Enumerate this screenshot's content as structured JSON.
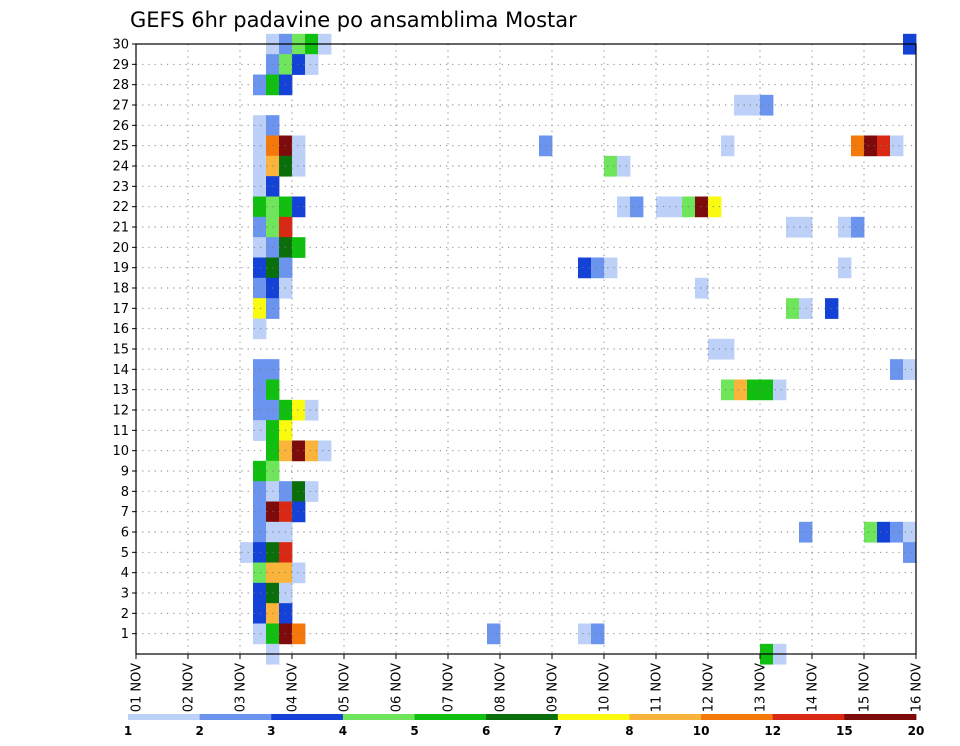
{
  "chart_data": {
    "type": "heatmap",
    "title": "GEFS 6hr padavine po ansamblima Mostar",
    "x_tick_labels": [
      "01 NOV",
      "02 NOV",
      "03 NOV",
      "04 NOV",
      "05 NOV",
      "06 NOV",
      "07 NOV",
      "08 NOV",
      "09 NOV",
      "10 NOV",
      "11 NOV",
      "12 NOV",
      "13 NOV",
      "14 NOV",
      "15 NOV",
      "16 NOV"
    ],
    "y_tick_labels": [
      "1",
      "2",
      "3",
      "4",
      "5",
      "6",
      "7",
      "8",
      "9",
      "10",
      "11",
      "12",
      "13",
      "14",
      "15",
      "16",
      "17",
      "18",
      "19",
      "20",
      "21",
      "22",
      "23",
      "24",
      "25",
      "26",
      "27",
      "28",
      "29",
      "30"
    ],
    "xlim_days": [
      1,
      16
    ],
    "ylim_members": [
      0,
      30
    ],
    "time_step_hours": 6,
    "grid": true,
    "colorbar": {
      "tick_labels": [
        "1",
        "2",
        "3",
        "4",
        "5",
        "6",
        "7",
        "8",
        "10",
        "12",
        "15",
        "20"
      ],
      "colors": [
        "#bcd0f8",
        "#6a94ee",
        "#1441d6",
        "#6ee55a",
        "#10bf10",
        "#0a6e0a",
        "#fafa10",
        "#fab43c",
        "#f5780a",
        "#d92814",
        "#7d0b0b"
      ]
    },
    "cells": [
      {
        "m": 30,
        "t": "2025-11-03T12",
        "c": 0
      },
      {
        "m": 30,
        "t": "2025-11-03T18",
        "c": 1
      },
      {
        "m": 30,
        "t": "2025-11-04T00",
        "c": 3
      },
      {
        "m": 30,
        "t": "2025-11-04T06",
        "c": 4
      },
      {
        "m": 30,
        "t": "2025-11-04T12",
        "c": 0
      },
      {
        "m": 30,
        "t": "2025-11-15T18",
        "c": 2
      },
      {
        "m": 29,
        "t": "2025-11-03T12",
        "c": 1
      },
      {
        "m": 29,
        "t": "2025-11-03T18",
        "c": 3
      },
      {
        "m": 29,
        "t": "2025-11-04T00",
        "c": 2
      },
      {
        "m": 29,
        "t": "2025-11-04T06",
        "c": 0
      },
      {
        "m": 28,
        "t": "2025-11-03T06",
        "c": 1
      },
      {
        "m": 28,
        "t": "2025-11-03T12",
        "c": 4
      },
      {
        "m": 28,
        "t": "2025-11-03T18",
        "c": 2
      },
      {
        "m": 27,
        "t": "2025-11-12T12",
        "c": 0
      },
      {
        "m": 27,
        "t": "2025-11-12T18",
        "c": 0
      },
      {
        "m": 27,
        "t": "2025-11-13T00",
        "c": 1
      },
      {
        "m": 26,
        "t": "2025-11-03T06",
        "c": 0
      },
      {
        "m": 26,
        "t": "2025-11-03T12",
        "c": 1
      },
      {
        "m": 25,
        "t": "2025-11-03T06",
        "c": 0
      },
      {
        "m": 25,
        "t": "2025-11-03T12",
        "c": 8
      },
      {
        "m": 25,
        "t": "2025-11-03T18",
        "c": 10
      },
      {
        "m": 25,
        "t": "2025-11-04T00",
        "c": 0
      },
      {
        "m": 25,
        "t": "2025-11-08T18",
        "c": 1
      },
      {
        "m": 25,
        "t": "2025-11-12T06",
        "c": 0
      },
      {
        "m": 25,
        "t": "2025-11-14T18",
        "c": 8
      },
      {
        "m": 25,
        "t": "2025-11-15T00",
        "c": 10
      },
      {
        "m": 25,
        "t": "2025-11-15T06",
        "c": 9
      },
      {
        "m": 25,
        "t": "2025-11-15T12",
        "c": 0
      },
      {
        "m": 24,
        "t": "2025-11-03T06",
        "c": 0
      },
      {
        "m": 24,
        "t": "2025-11-03T12",
        "c": 7
      },
      {
        "m": 24,
        "t": "2025-11-03T18",
        "c": 5
      },
      {
        "m": 24,
        "t": "2025-11-04T00",
        "c": 0
      },
      {
        "m": 24,
        "t": "2025-11-10T00",
        "c": 3
      },
      {
        "m": 24,
        "t": "2025-11-10T06",
        "c": 0
      },
      {
        "m": 23,
        "t": "2025-11-03T06",
        "c": 0
      },
      {
        "m": 23,
        "t": "2025-11-03T12",
        "c": 2
      },
      {
        "m": 22,
        "t": "2025-11-03T06",
        "c": 4
      },
      {
        "m": 22,
        "t": "2025-11-03T12",
        "c": 3
      },
      {
        "m": 22,
        "t": "2025-11-03T18",
        "c": 4
      },
      {
        "m": 22,
        "t": "2025-11-04T00",
        "c": 2
      },
      {
        "m": 22,
        "t": "2025-11-10T06",
        "c": 0
      },
      {
        "m": 22,
        "t": "2025-11-10T12",
        "c": 1
      },
      {
        "m": 22,
        "t": "2025-11-11T00",
        "c": 0
      },
      {
        "m": 22,
        "t": "2025-11-11T06",
        "c": 0
      },
      {
        "m": 22,
        "t": "2025-11-11T12",
        "c": 3
      },
      {
        "m": 22,
        "t": "2025-11-11T18",
        "c": 10
      },
      {
        "m": 22,
        "t": "2025-11-12T00",
        "c": 6
      },
      {
        "m": 21,
        "t": "2025-11-03T06",
        "c": 1
      },
      {
        "m": 21,
        "t": "2025-11-03T12",
        "c": 3
      },
      {
        "m": 21,
        "t": "2025-11-03T18",
        "c": 9
      },
      {
        "m": 21,
        "t": "2025-11-13T12",
        "c": 0
      },
      {
        "m": 21,
        "t": "2025-11-13T18",
        "c": 0
      },
      {
        "m": 21,
        "t": "2025-11-14T12",
        "c": 0
      },
      {
        "m": 21,
        "t": "2025-11-14T18",
        "c": 1
      },
      {
        "m": 20,
        "t": "2025-11-03T06",
        "c": 0
      },
      {
        "m": 20,
        "t": "2025-11-03T12",
        "c": 1
      },
      {
        "m": 20,
        "t": "2025-11-03T18",
        "c": 5
      },
      {
        "m": 20,
        "t": "2025-11-04T00",
        "c": 4
      },
      {
        "m": 19,
        "t": "2025-11-03T06",
        "c": 2
      },
      {
        "m": 19,
        "t": "2025-11-03T12",
        "c": 5
      },
      {
        "m": 19,
        "t": "2025-11-03T18",
        "c": 1
      },
      {
        "m": 19,
        "t": "2025-11-09T12",
        "c": 2
      },
      {
        "m": 19,
        "t": "2025-11-09T18",
        "c": 1
      },
      {
        "m": 19,
        "t": "2025-11-10T00",
        "c": 0
      },
      {
        "m": 19,
        "t": "2025-11-14T12",
        "c": 0
      },
      {
        "m": 18,
        "t": "2025-11-03T06",
        "c": 1
      },
      {
        "m": 18,
        "t": "2025-11-03T12",
        "c": 2
      },
      {
        "m": 18,
        "t": "2025-11-03T18",
        "c": 0
      },
      {
        "m": 18,
        "t": "2025-11-11T18",
        "c": 0
      },
      {
        "m": 17,
        "t": "2025-11-03T06",
        "c": 6
      },
      {
        "m": 17,
        "t": "2025-11-03T12",
        "c": 1
      },
      {
        "m": 17,
        "t": "2025-11-13T12",
        "c": 3
      },
      {
        "m": 17,
        "t": "2025-11-13T18",
        "c": 0
      },
      {
        "m": 17,
        "t": "2025-11-14T06",
        "c": 2
      },
      {
        "m": 16,
        "t": "2025-11-03T06",
        "c": 0
      },
      {
        "m": 15,
        "t": "2025-11-12T00",
        "c": 0
      },
      {
        "m": 15,
        "t": "2025-11-12T06",
        "c": 0
      },
      {
        "m": 14,
        "t": "2025-11-03T06",
        "c": 1
      },
      {
        "m": 14,
        "t": "2025-11-03T12",
        "c": 1
      },
      {
        "m": 14,
        "t": "2025-11-15T12",
        "c": 1
      },
      {
        "m": 14,
        "t": "2025-11-15T18",
        "c": 0
      },
      {
        "m": 13,
        "t": "2025-11-03T06",
        "c": 1
      },
      {
        "m": 13,
        "t": "2025-11-03T12",
        "c": 4
      },
      {
        "m": 13,
        "t": "2025-11-12T06",
        "c": 3
      },
      {
        "m": 13,
        "t": "2025-11-12T12",
        "c": 7
      },
      {
        "m": 13,
        "t": "2025-11-12T18",
        "c": 4
      },
      {
        "m": 13,
        "t": "2025-11-13T00",
        "c": 4
      },
      {
        "m": 13,
        "t": "2025-11-13T06",
        "c": 0
      },
      {
        "m": 12,
        "t": "2025-11-03T06",
        "c": 1
      },
      {
        "m": 12,
        "t": "2025-11-03T12",
        "c": 1
      },
      {
        "m": 12,
        "t": "2025-11-03T18",
        "c": 4
      },
      {
        "m": 12,
        "t": "2025-11-04T00",
        "c": 6
      },
      {
        "m": 12,
        "t": "2025-11-04T06",
        "c": 0
      },
      {
        "m": 11,
        "t": "2025-11-03T06",
        "c": 0
      },
      {
        "m": 11,
        "t": "2025-11-03T12",
        "c": 4
      },
      {
        "m": 11,
        "t": "2025-11-03T18",
        "c": 6
      },
      {
        "m": 10,
        "t": "2025-11-03T12",
        "c": 4
      },
      {
        "m": 10,
        "t": "2025-11-03T18",
        "c": 7
      },
      {
        "m": 10,
        "t": "2025-11-04T00",
        "c": 10
      },
      {
        "m": 10,
        "t": "2025-11-04T06",
        "c": 7
      },
      {
        "m": 10,
        "t": "2025-11-04T12",
        "c": 0
      },
      {
        "m": 9,
        "t": "2025-11-03T06",
        "c": 4
      },
      {
        "m": 9,
        "t": "2025-11-03T12",
        "c": 3
      },
      {
        "m": 8,
        "t": "2025-11-03T06",
        "c": 1
      },
      {
        "m": 8,
        "t": "2025-11-03T12",
        "c": 0
      },
      {
        "m": 8,
        "t": "2025-11-03T18",
        "c": 1
      },
      {
        "m": 8,
        "t": "2025-11-04T00",
        "c": 5
      },
      {
        "m": 8,
        "t": "2025-11-04T06",
        "c": 0
      },
      {
        "m": 7,
        "t": "2025-11-03T06",
        "c": 1
      },
      {
        "m": 7,
        "t": "2025-11-03T12",
        "c": 10
      },
      {
        "m": 7,
        "t": "2025-11-03T18",
        "c": 9
      },
      {
        "m": 7,
        "t": "2025-11-04T00",
        "c": 2
      },
      {
        "m": 6,
        "t": "2025-11-03T06",
        "c": 1
      },
      {
        "m": 6,
        "t": "2025-11-03T12",
        "c": 0
      },
      {
        "m": 6,
        "t": "2025-11-03T18",
        "c": 0
      },
      {
        "m": 6,
        "t": "2025-11-13T18",
        "c": 1
      },
      {
        "m": 6,
        "t": "2025-11-15T00",
        "c": 3
      },
      {
        "m": 6,
        "t": "2025-11-15T06",
        "c": 2
      },
      {
        "m": 6,
        "t": "2025-11-15T12",
        "c": 1
      },
      {
        "m": 6,
        "t": "2025-11-15T18",
        "c": 0
      },
      {
        "m": 5,
        "t": "2025-11-03T00",
        "c": 0
      },
      {
        "m": 5,
        "t": "2025-11-03T06",
        "c": 2
      },
      {
        "m": 5,
        "t": "2025-11-03T12",
        "c": 5
      },
      {
        "m": 5,
        "t": "2025-11-03T18",
        "c": 9
      },
      {
        "m": 5,
        "t": "2025-11-15T18",
        "c": 1
      },
      {
        "m": 4,
        "t": "2025-11-03T06",
        "c": 3
      },
      {
        "m": 4,
        "t": "2025-11-03T12",
        "c": 7
      },
      {
        "m": 4,
        "t": "2025-11-03T18",
        "c": 7
      },
      {
        "m": 4,
        "t": "2025-11-04T00",
        "c": 0
      },
      {
        "m": 3,
        "t": "2025-11-03T06",
        "c": 2
      },
      {
        "m": 3,
        "t": "2025-11-03T12",
        "c": 5
      },
      {
        "m": 3,
        "t": "2025-11-03T18",
        "c": 0
      },
      {
        "m": 2,
        "t": "2025-11-03T06",
        "c": 2
      },
      {
        "m": 2,
        "t": "2025-11-03T12",
        "c": 7
      },
      {
        "m": 2,
        "t": "2025-11-03T18",
        "c": 2
      },
      {
        "m": 1,
        "t": "2025-11-03T06",
        "c": 0
      },
      {
        "m": 1,
        "t": "2025-11-03T12",
        "c": 4
      },
      {
        "m": 1,
        "t": "2025-11-03T18",
        "c": 10
      },
      {
        "m": 1,
        "t": "2025-11-04T00",
        "c": 8
      },
      {
        "m": 1,
        "t": "2025-11-07T18",
        "c": 1
      },
      {
        "m": 1,
        "t": "2025-11-09T12",
        "c": 0
      },
      {
        "m": 1,
        "t": "2025-11-09T18",
        "c": 1
      },
      {
        "m": 0,
        "t": "2025-11-03T12",
        "c": 0
      },
      {
        "m": 0,
        "t": "2025-11-13T00",
        "c": 4
      },
      {
        "m": 0,
        "t": "2025-11-13T06",
        "c": 0
      }
    ]
  }
}
